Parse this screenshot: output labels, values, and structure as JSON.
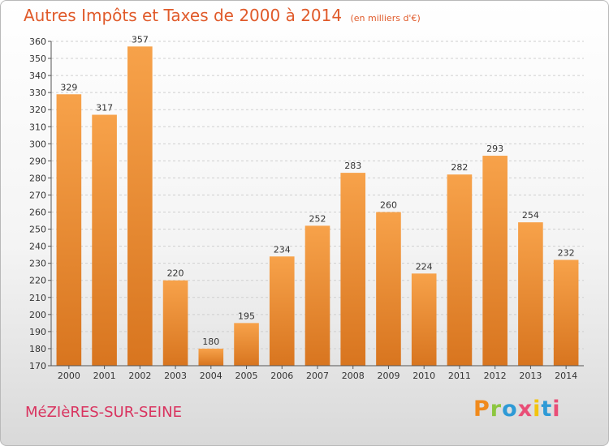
{
  "header": {
    "title": "Autres Impôts et Taxes de 2000 à 2014",
    "subtitle": "(en milliers d'€)"
  },
  "footer": {
    "town": "MéZIèRES-SUR-SEINE",
    "brand": "Proxiti",
    "brand_colors": [
      "#f08a1c",
      "#8cc63f",
      "#2e9ad6",
      "#e94e77",
      "#f2c40f",
      "#2e9ad6",
      "#e94e77"
    ]
  },
  "chart_data": {
    "type": "bar",
    "title": "Autres Impôts et Taxes de 2000 à 2014",
    "subtitle": "(en milliers d'€)",
    "xlabel": "",
    "ylabel": "",
    "categories": [
      "2000",
      "2001",
      "2002",
      "2003",
      "2004",
      "2005",
      "2006",
      "2007",
      "2008",
      "2009",
      "2010",
      "2011",
      "2012",
      "2013",
      "2014"
    ],
    "values": [
      329,
      317,
      357,
      220,
      180,
      195,
      234,
      252,
      283,
      260,
      224,
      282,
      293,
      254,
      232
    ],
    "ylim": [
      170,
      360
    ],
    "ytick_step": 10,
    "grid": true,
    "legend": "none",
    "bar_color_top": "#f7a24a",
    "bar_color_bottom": "#d8751f",
    "grid_color": "#cfcfcf"
  }
}
